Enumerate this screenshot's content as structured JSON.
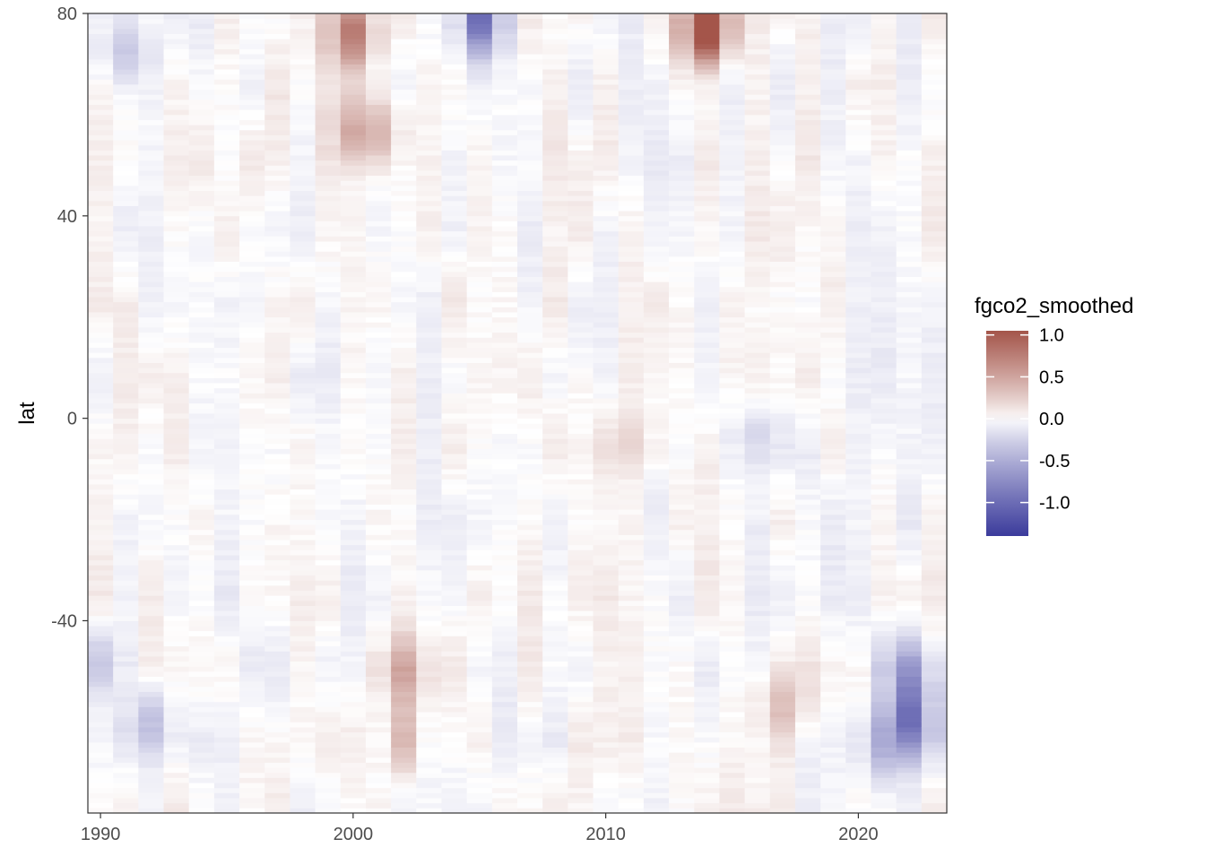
{
  "chart_data": {
    "type": "heatmap",
    "title": "",
    "xlabel": "",
    "ylabel": "lat",
    "x_ticks": [
      1990,
      2000,
      2010,
      2020
    ],
    "y_ticks": [
      80,
      40,
      0,
      -40
    ],
    "xlim": [
      1989.5,
      2023.5
    ],
    "ylim": [
      -78,
      80
    ],
    "x_years": [
      1990,
      1991,
      1992,
      1993,
      1994,
      1995,
      1996,
      1997,
      1998,
      1999,
      2000,
      2001,
      2002,
      2003,
      2004,
      2005,
      2006,
      2007,
      2008,
      2009,
      2010,
      2011,
      2012,
      2013,
      2014,
      2015,
      2016,
      2017,
      2018,
      2019,
      2020,
      2021,
      2022,
      2023
    ],
    "lat_step": 1,
    "grid": false,
    "legend": {
      "title": "fgco2_smoothed",
      "position": "right",
      "breaks": [
        1.0,
        0.5,
        0.0,
        -0.5,
        -1.0
      ],
      "break_labels": [
        "1.0",
        "0.5",
        "0.0",
        "-0.5",
        "-1.0"
      ],
      "limits": [
        -1.4,
        1.05
      ],
      "colors": {
        "low": "#3b3b9c",
        "mid": "#ffffff",
        "high": "#a4554a"
      }
    },
    "anomaly_features": [
      {
        "year": 2000,
        "lat": 57,
        "value": 0.35
      },
      {
        "year": 2001,
        "lat": 57,
        "value": 0.32
      },
      {
        "year": 2000,
        "lat": 76,
        "value": 0.7
      },
      {
        "year": 2014,
        "lat": 79,
        "value": 0.9
      },
      {
        "year": 2014,
        "lat": 76,
        "value": 0.6
      },
      {
        "year": 2005,
        "lat": 79,
        "value": -0.9
      },
      {
        "year": 2002,
        "lat": -50,
        "value": 0.4
      },
      {
        "year": 2002,
        "lat": -64,
        "value": 0.35
      },
      {
        "year": 2022,
        "lat": -60,
        "value": -0.8
      },
      {
        "year": 2022,
        "lat": -50,
        "value": -0.55
      },
      {
        "year": 2021,
        "lat": -65,
        "value": -0.45
      },
      {
        "year": 1990,
        "lat": -48,
        "value": -0.35
      },
      {
        "year": 1992,
        "lat": -60,
        "value": -0.35
      },
      {
        "year": 2016,
        "lat": -4,
        "value": -0.3
      },
      {
        "year": 2011,
        "lat": -5,
        "value": 0.25
      },
      {
        "year": 2017,
        "lat": -57,
        "value": 0.3
      },
      {
        "year": 1991,
        "lat": 72,
        "value": -0.3
      }
    ]
  }
}
